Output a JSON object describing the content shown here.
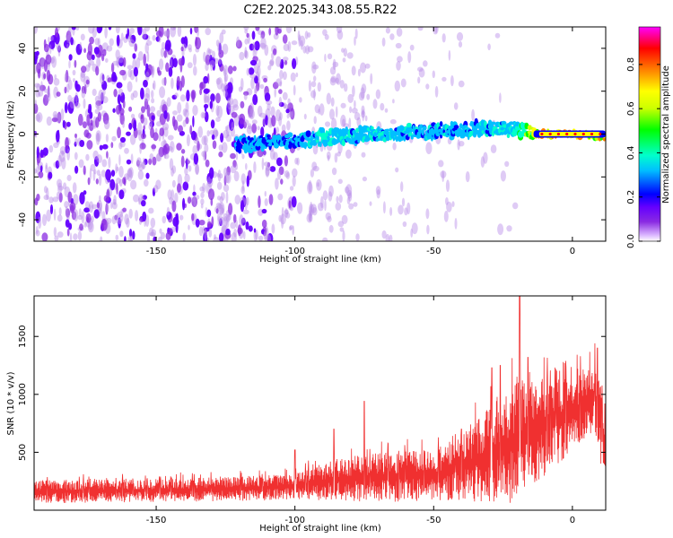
{
  "title": "C2E2.2025.343.08.55.R22",
  "chart_data": [
    {
      "type": "heatmap",
      "name": "spectrogram",
      "xlabel": "Height of straight line (km)",
      "ylabel": "Frequency (Hz)",
      "xlim": [
        -194,
        12
      ],
      "ylim": [
        -50,
        50
      ],
      "xticks": [
        -150,
        -100,
        -50,
        0
      ],
      "yticks": [
        -40,
        -20,
        0,
        20,
        40
      ],
      "colorbar": {
        "label": "Normalized spectral amplitude",
        "range": [
          0.0,
          0.97
        ],
        "ticks": [
          0.0,
          0.2,
          0.4,
          0.6,
          0.8
        ],
        "tick_labels": [
          "0.0",
          "0.2",
          "0.4",
          "0.6",
          "0.8"
        ],
        "colormap": [
          "#ffffff",
          "#8a2be2",
          "#6400ff",
          "#0000ff",
          "#00bfff",
          "#00ffcc",
          "#00ff00",
          "#ccff00",
          "#ffff00",
          "#ff8000",
          "#ff0000",
          "#ff00ff"
        ]
      },
      "band_profile": [
        {
          "x": -120,
          "freq": -5,
          "amp": 0.25
        },
        {
          "x": -100,
          "freq": -3,
          "amp": 0.28
        },
        {
          "x": -85,
          "freq": -1,
          "amp": 0.35
        },
        {
          "x": -70,
          "freq": 0,
          "amp": 0.33
        },
        {
          "x": -55,
          "freq": 1,
          "amp": 0.3
        },
        {
          "x": -40,
          "freq": 2,
          "amp": 0.3
        },
        {
          "x": -25,
          "freq": 3,
          "amp": 0.35
        },
        {
          "x": -18,
          "freq": 2,
          "amp": 0.45
        },
        {
          "x": -12,
          "freq": 0,
          "amp": 0.9
        },
        {
          "x": 0,
          "freq": 0,
          "amp": 0.93
        },
        {
          "x": 10,
          "freq": -1,
          "amp": 0.9
        }
      ]
    },
    {
      "type": "line",
      "name": "snr",
      "xlabel": "Height of straight line (km)",
      "ylabel": "SNR (10 * v/v)",
      "xlim": [
        -194,
        12
      ],
      "ylim": [
        0,
        1850
      ],
      "xticks": [
        -150,
        -100,
        -50,
        0
      ],
      "yticks": [
        500,
        1000,
        1500
      ],
      "color": "#f03030",
      "envelope": [
        {
          "x": -194,
          "low": 60,
          "high": 260
        },
        {
          "x": -150,
          "low": 70,
          "high": 270
        },
        {
          "x": -120,
          "low": 80,
          "high": 290
        },
        {
          "x": -100,
          "low": 90,
          "high": 320
        },
        {
          "x": -85,
          "low": 80,
          "high": 450
        },
        {
          "x": -70,
          "low": 70,
          "high": 500
        },
        {
          "x": -50,
          "low": 80,
          "high": 520
        },
        {
          "x": -40,
          "low": 90,
          "high": 650
        },
        {
          "x": -30,
          "low": 60,
          "high": 900
        },
        {
          "x": -20,
          "low": 60,
          "high": 1100
        },
        {
          "x": -10,
          "low": 300,
          "high": 1150
        },
        {
          "x": 0,
          "low": 500,
          "high": 1150
        },
        {
          "x": 8,
          "low": 650,
          "high": 1300
        },
        {
          "x": 12,
          "low": 200,
          "high": 900
        }
      ],
      "peaks": [
        {
          "x": -100,
          "y": 520
        },
        {
          "x": -86,
          "y": 700
        },
        {
          "x": -75,
          "y": 940
        },
        {
          "x": -40,
          "y": 700
        },
        {
          "x": -29,
          "y": 1230
        },
        {
          "x": -26,
          "y": 1250
        },
        {
          "x": -19,
          "y": 1850
        },
        {
          "x": -16,
          "y": 1320
        },
        {
          "x": 9,
          "y": 1400
        }
      ]
    }
  ]
}
